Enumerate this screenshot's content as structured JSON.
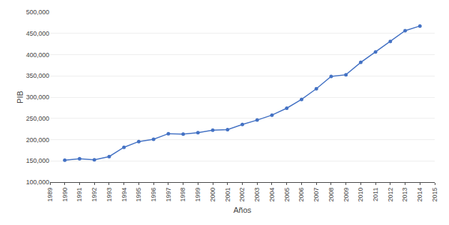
{
  "chart_data": {
    "type": "line",
    "x": [
      1990,
      1991,
      1992,
      1993,
      1994,
      1995,
      1996,
      1997,
      1998,
      1999,
      2000,
      2001,
      2002,
      2003,
      2004,
      2005,
      2006,
      2007,
      2008,
      2009,
      2010,
      2011,
      2012,
      2013,
      2014
    ],
    "values": [
      151492,
      154856,
      152408,
      160145,
      182044,
      195536,
      201009,
      214028,
      213190,
      216377,
      222207,
      223580,
      235773,
      246028,
      257770,
      273971,
      294598,
      319693,
      348923,
      352693,
      381755,
      406256,
      431273,
      456435,
      467433
    ],
    "color": "#4472C4",
    "marker": "circle",
    "xlabel": "Años",
    "ylabel": "PIB",
    "xlim": [
      1989,
      2015
    ],
    "ylim": [
      100000,
      500000
    ],
    "xticks": [
      1989,
      1990,
      1991,
      1992,
      1993,
      1994,
      1995,
      1996,
      1997,
      1998,
      1999,
      2000,
      2001,
      2002,
      2003,
      2004,
      2005,
      2006,
      2007,
      2008,
      2009,
      2010,
      2011,
      2012,
      2013,
      2014,
      2015
    ],
    "yticks": [
      {
        "value": 100000,
        "label": "100,000"
      },
      {
        "value": 150000,
        "label": "150,000"
      },
      {
        "value": 200000,
        "label": "200,000"
      },
      {
        "value": 250000,
        "label": "250,000"
      },
      {
        "value": 300000,
        "label": "300,000"
      },
      {
        "value": 350000,
        "label": "350,000"
      },
      {
        "value": 400000,
        "label": "400,000"
      },
      {
        "value": 450000,
        "label": "450,000"
      },
      {
        "value": 500000,
        "label": "500,000"
      }
    ],
    "grid": true
  }
}
